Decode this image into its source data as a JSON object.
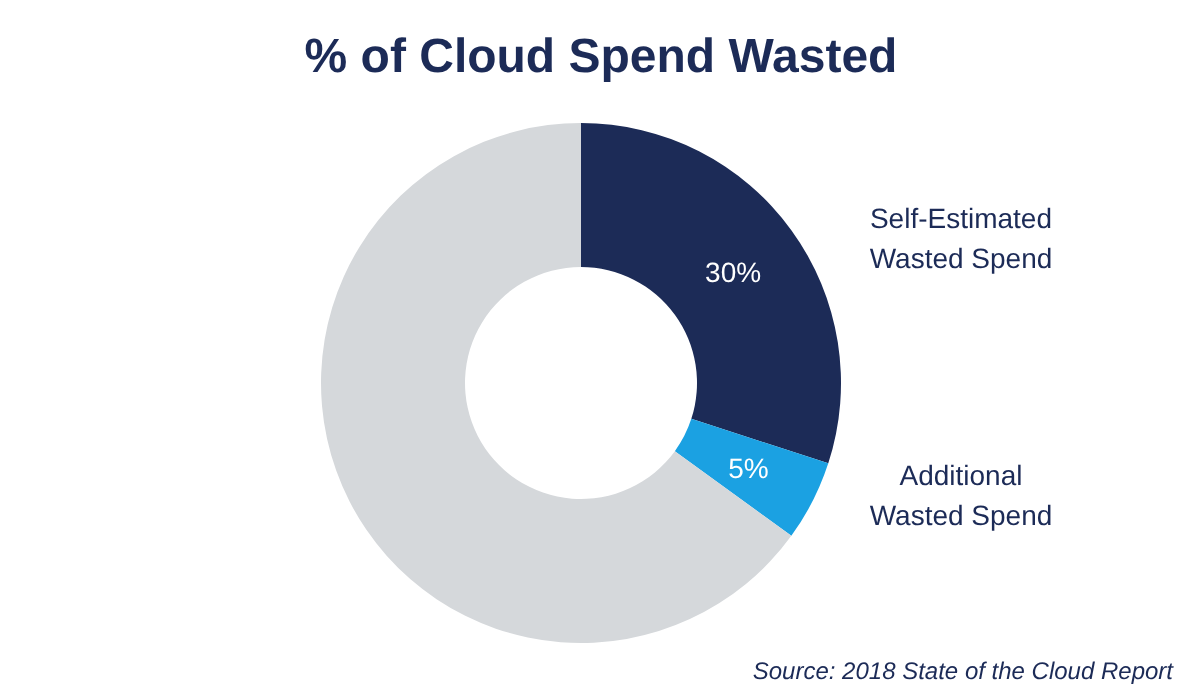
{
  "chart_data": {
    "type": "donut",
    "title": "% of Cloud Spend Wasted",
    "categories": [
      "Self-Estimated\nWasted Spend",
      "Additional\nWasted Spend",
      null
    ],
    "values": [
      30,
      5,
      65
    ],
    "colors": [
      "#1c2b57",
      "#1ba1e2",
      "#d5d8db"
    ],
    "value_labels": [
      "30%",
      "5%",
      null
    ],
    "annotations": [
      "Source: 2018 State of the Cloud Report"
    ]
  }
}
